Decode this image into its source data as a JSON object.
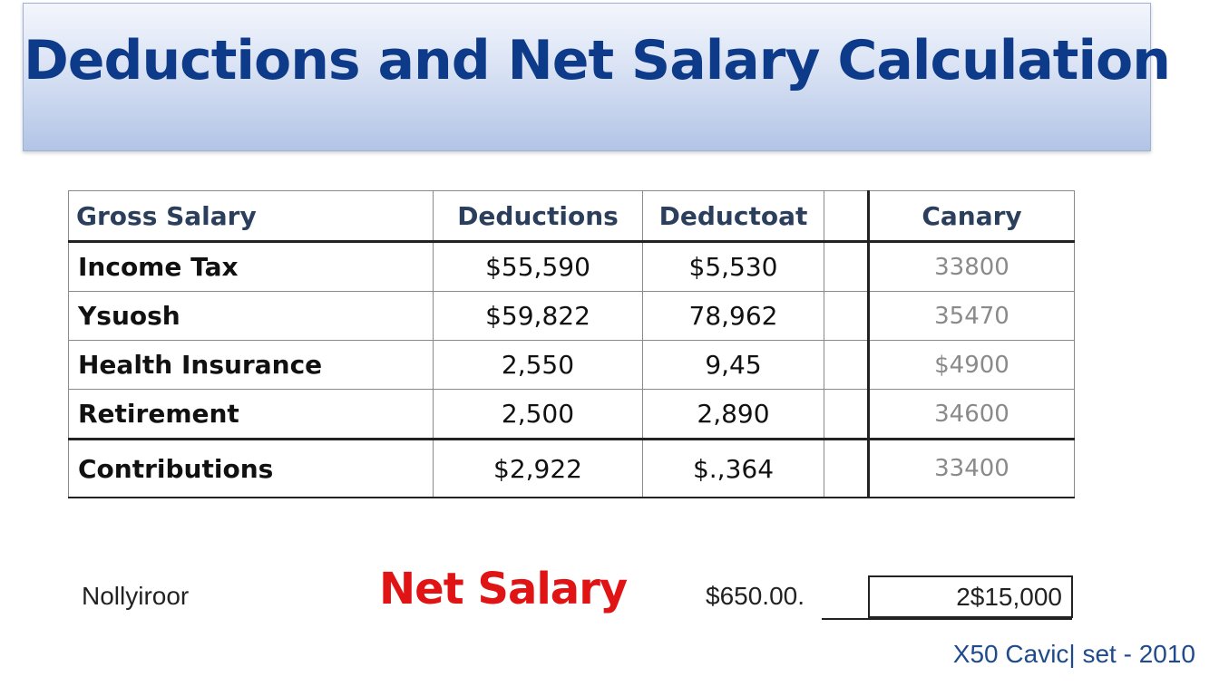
{
  "title": "Deductions and Net Salary Calculation",
  "table": {
    "headers": [
      "Gross Salary",
      "Deductions",
      "Deductoat",
      "",
      "Canary"
    ],
    "rows": [
      {
        "label": "Income Tax",
        "deductions": "$55,590",
        "deductoat": "$5,530",
        "blank": "",
        "canary": "33800"
      },
      {
        "label": "Ysuosh",
        "deductions": "$59,822",
        "deductoat": "78,962",
        "blank": "",
        "canary": "35470"
      },
      {
        "label": "Health Insurance",
        "deductions": "2,550",
        "deductoat": "9,45",
        "blank": "",
        "canary": "$4900"
      },
      {
        "label": "Retirement",
        "deductions": "2,500",
        "deductoat": "2,890",
        "blank": "",
        "canary": "34600"
      },
      {
        "label": "Contributions",
        "deductions": "$2,922",
        "deductoat": "$.,364",
        "blank": "",
        "canary": "33400"
      }
    ]
  },
  "footer": {
    "left_text": "Nollyiroor",
    "net_salary_label": "Net Salary",
    "net_salary_value": "$650.00.",
    "net_salary_box": "2$15,000",
    "credit": "X50 Cavic| set - 2010"
  }
}
